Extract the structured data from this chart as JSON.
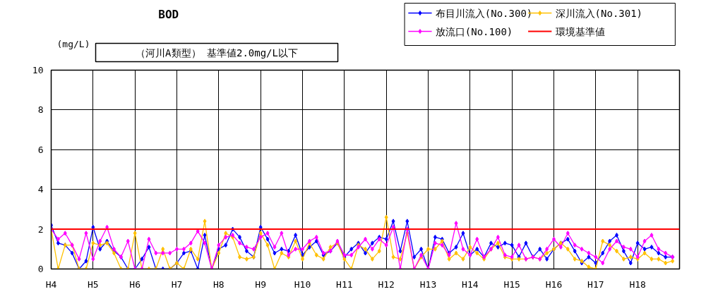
{
  "chart_data": {
    "type": "line",
    "title": "BOD",
    "ylabel": "(mg/L)",
    "annotations": [
      "（河川A類型） 基準値2.0mg/L以下"
    ],
    "categories": [
      "H4",
      null,
      null,
      null,
      null,
      null,
      "H5",
      null,
      null,
      null,
      null,
      null,
      "H6",
      null,
      null,
      null,
      null,
      null,
      "H7",
      null,
      null,
      null,
      null,
      null,
      "H8",
      null,
      null,
      null,
      null,
      null,
      "H9",
      null,
      null,
      null,
      null,
      null,
      "H10",
      null,
      null,
      null,
      null,
      null,
      "H11",
      null,
      null,
      null,
      null,
      null,
      "H12",
      null,
      null,
      null,
      null,
      null,
      "H13",
      null,
      null,
      null,
      null,
      null,
      "H14",
      null,
      null,
      null,
      null,
      null,
      "H15",
      null,
      null,
      null,
      null,
      null,
      "H16",
      null,
      null,
      null,
      null,
      null,
      "H17",
      null,
      null,
      null,
      null,
      null,
      "H18",
      null,
      null,
      null,
      null,
      null
    ],
    "ylim": [
      0,
      10
    ],
    "yticks": [
      0,
      2,
      4,
      6,
      8,
      10
    ],
    "grid": true,
    "legend": "top right",
    "marker": "diamond",
    "line_style": "solid",
    "series": [
      {
        "name": "布目川流入(No.300)",
        "color": "#0000ff",
        "values": [
          2.2,
          1.3,
          1.2,
          0.8,
          0.0,
          0.4,
          2.1,
          1.0,
          1.4,
          0.9,
          0.6,
          0.0,
          0.0,
          0.5,
          1.1,
          0.0,
          0.0,
          0.0,
          0.3,
          0.8,
          0.9,
          0.0,
          1.7,
          0.0,
          1.0,
          1.2,
          2.0,
          1.6,
          0.9,
          0.6,
          2.1,
          1.5,
          0.8,
          1.0,
          0.9,
          1.7,
          0.7,
          1.1,
          1.4,
          0.7,
          0.9,
          1.3,
          0.6,
          1.0,
          1.3,
          0.8,
          1.3,
          1.6,
          1.5,
          2.4,
          0.9,
          2.4,
          0.6,
          1.0,
          0.0,
          1.6,
          1.5,
          0.8,
          1.1,
          1.8,
          0.7,
          1.0,
          0.6,
          1.3,
          1.1,
          1.3,
          1.2,
          0.6,
          1.3,
          0.6,
          1.0,
          0.5,
          1.0,
          1.3,
          1.5,
          0.9,
          0.3,
          0.6,
          0.3,
          0.8,
          1.4,
          1.7,
          0.9,
          0.3,
          1.3,
          1.0,
          1.1,
          0.8,
          0.6,
          0.6
        ]
      },
      {
        "name": "深川流入(No.301)",
        "color": "#ffc000",
        "values": [
          2.0,
          0.0,
          1.2,
          1.2,
          0.0,
          0.0,
          1.3,
          1.2,
          1.3,
          0.8,
          0.0,
          0.0,
          1.8,
          0.0,
          0.0,
          0.0,
          1.0,
          0.0,
          0.3,
          0.0,
          1.0,
          0.5,
          2.4,
          0.0,
          0.8,
          1.8,
          1.6,
          0.6,
          0.5,
          0.6,
          1.8,
          1.2,
          0.0,
          0.8,
          0.6,
          1.4,
          0.5,
          1.3,
          0.7,
          0.5,
          1.1,
          1.3,
          0.5,
          0.0,
          1.2,
          1.0,
          0.5,
          0.9,
          2.6,
          0.6,
          0.5,
          1.8,
          0.0,
          0.6,
          1.0,
          1.0,
          1.4,
          0.5,
          0.8,
          0.5,
          1.1,
          0.8,
          0.5,
          1.0,
          1.3,
          0.6,
          0.5,
          0.5,
          0.5,
          0.6,
          0.5,
          0.8,
          1.0,
          1.3,
          1.0,
          0.5,
          0.4,
          0.1,
          0.0,
          1.4,
          1.2,
          0.9,
          0.5,
          0.6,
          0.5,
          0.8,
          0.5,
          0.5,
          0.3,
          0.4
        ]
      },
      {
        "name": "放流口(No.100)",
        "color": "#ff00ff",
        "values": [
          2.0,
          1.5,
          1.8,
          1.2,
          0.5,
          1.8,
          0.5,
          1.4,
          2.1,
          1.0,
          0.6,
          1.4,
          0.0,
          0.0,
          1.5,
          0.8,
          0.8,
          0.8,
          1.0,
          1.0,
          1.3,
          1.9,
          1.3,
          0.0,
          1.2,
          1.6,
          1.7,
          1.3,
          1.1,
          1.0,
          1.6,
          1.8,
          1.1,
          1.8,
          0.7,
          1.0,
          1.0,
          1.4,
          1.6,
          0.8,
          0.9,
          1.4,
          0.7,
          0.7,
          1.1,
          1.5,
          1.0,
          1.5,
          1.2,
          2.1,
          0.0,
          2.0,
          0.0,
          0.7,
          0.0,
          1.3,
          1.2,
          0.7,
          2.3,
          1.0,
          0.7,
          1.5,
          0.6,
          1.0,
          1.6,
          0.7,
          0.6,
          1.2,
          0.5,
          0.6,
          0.5,
          1.0,
          1.5,
          1.1,
          1.8,
          1.2,
          1.0,
          0.8,
          0.6,
          0.3,
          1.0,
          1.4,
          1.1,
          1.0,
          0.6,
          1.4,
          1.7,
          1.0,
          0.8,
          0.6
        ]
      }
    ],
    "ref_lines": [
      {
        "axis": "y",
        "value": 2,
        "label": "環境基準値",
        "color": "#ff0000"
      }
    ]
  }
}
